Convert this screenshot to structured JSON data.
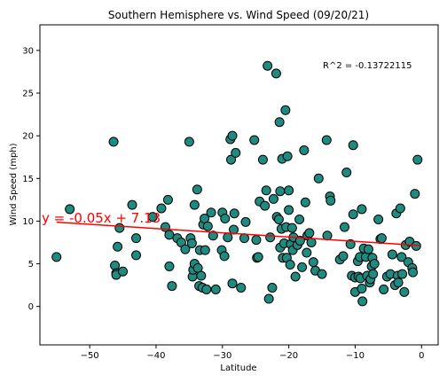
{
  "chart_data": {
    "type": "scatter",
    "title": "Southern Hemisphere vs. Wind Speed (09/20/21)",
    "xlabel": "Latitude",
    "ylabel": "Wind Speed (mph)",
    "xlim": [
      -57.5,
      2.5
    ],
    "ylim": [
      -4.5,
      33
    ],
    "xticks": [
      -50,
      -40,
      -30,
      -20,
      -10,
      0
    ],
    "yticks": [
      0,
      5,
      10,
      15,
      20,
      25,
      30
    ],
    "grid": false,
    "marker_color": "#1f8a80",
    "marker_edge": "#000000",
    "line_color": "#ff0000",
    "annotation_equation": "y = -0.05x + 7.13",
    "annotation_r2": "R^2 = -0.13722115",
    "regression": {
      "slope": -0.05,
      "intercept": 7.13,
      "x_range": [
        -55,
        -0.3
      ]
    },
    "points": [
      [
        -55,
        5.8
      ],
      [
        -53,
        11.4
      ],
      [
        -46.4,
        19.3
      ],
      [
        -46.2,
        4.8
      ],
      [
        -46,
        3.9
      ],
      [
        -46,
        3.7
      ],
      [
        -45.8,
        7
      ],
      [
        -45.5,
        9.2
      ],
      [
        -45,
        4.1
      ],
      [
        -43.6,
        11.9
      ],
      [
        -43,
        8
      ],
      [
        -43,
        6
      ],
      [
        -40.5,
        10.5
      ],
      [
        -39.2,
        11.5
      ],
      [
        -38.6,
        9.3
      ],
      [
        -38.2,
        12.5
      ],
      [
        -38,
        8.4
      ],
      [
        -38,
        4.7
      ],
      [
        -37.6,
        2.4
      ],
      [
        -36.8,
        8
      ],
      [
        -36.2,
        7.5
      ],
      [
        -35.6,
        6.7
      ],
      [
        -35,
        19.3
      ],
      [
        -34.8,
        8
      ],
      [
        -34.6,
        7.4
      ],
      [
        -34.5,
        3.5
      ],
      [
        -34.4,
        4.3
      ],
      [
        -34.2,
        11.9
      ],
      [
        -34.2,
        5
      ],
      [
        -33.8,
        13.7
      ],
      [
        -33.7,
        4.5
      ],
      [
        -33.5,
        2.4
      ],
      [
        -33.4,
        6.6
      ],
      [
        -33.2,
        3.6
      ],
      [
        -33,
        2.2
      ],
      [
        -32.9,
        9.6
      ],
      [
        -32.7,
        10.3
      ],
      [
        -32.6,
        6.6
      ],
      [
        -32.4,
        2
      ],
      [
        -32.2,
        9.4
      ],
      [
        -31.7,
        11
      ],
      [
        -31.4,
        8.3
      ],
      [
        -31,
        2
      ],
      [
        -30.1,
        6.6
      ],
      [
        -30,
        11
      ],
      [
        -29.7,
        5.9
      ],
      [
        -29.6,
        10.3
      ],
      [
        -29.2,
        8.1
      ],
      [
        -28.8,
        19.6
      ],
      [
        -28.7,
        17.2
      ],
      [
        -28.5,
        20
      ],
      [
        -28.5,
        2.7
      ],
      [
        -28.3,
        9
      ],
      [
        -28.2,
        10.9
      ],
      [
        -28,
        18
      ],
      [
        -27.2,
        2.2
      ],
      [
        -26.7,
        8
      ],
      [
        -26.5,
        9.9
      ],
      [
        -25.2,
        19.5
      ],
      [
        -24.9,
        7.8
      ],
      [
        -24.8,
        5.7
      ],
      [
        -24.6,
        5.8
      ],
      [
        -24.4,
        12.3
      ],
      [
        -23.9,
        17.2
      ],
      [
        -23.6,
        11.8
      ],
      [
        -23.4,
        13.6
      ],
      [
        -23.2,
        28.2
      ],
      [
        -23,
        0.9
      ],
      [
        -22.8,
        8.1
      ],
      [
        -22.5,
        2.2
      ],
      [
        -22.3,
        12.6
      ],
      [
        -21.9,
        27.3
      ],
      [
        -21.8,
        10.5
      ],
      [
        -21.5,
        10.2
      ],
      [
        -21.4,
        21.6
      ],
      [
        -21.3,
        6.9
      ],
      [
        -21.3,
        13.5
      ],
      [
        -21.1,
        9.1
      ],
      [
        -21,
        17.3
      ],
      [
        -20.9,
        5.7
      ],
      [
        -20.7,
        7.4
      ],
      [
        -20.5,
        23
      ],
      [
        -20.4,
        9.3
      ],
      [
        -20.3,
        5.7
      ],
      [
        -20.2,
        17.6
      ],
      [
        -20,
        11.3
      ],
      [
        -20,
        13.6
      ],
      [
        -19.8,
        4.9
      ],
      [
        -19.7,
        7.3
      ],
      [
        -19.5,
        9.2
      ],
      [
        -19.4,
        6.6
      ],
      [
        -19.3,
        8.1
      ],
      [
        -19,
        3.5
      ],
      [
        -18.7,
        7.2
      ],
      [
        -18.4,
        10.2
      ],
      [
        -18.3,
        7.7
      ],
      [
        -18,
        4.6
      ],
      [
        -17.7,
        18.3
      ],
      [
        -17.5,
        12.2
      ],
      [
        -17.3,
        6.3
      ],
      [
        -17.2,
        8.3
      ],
      [
        -16.9,
        8.6
      ],
      [
        -16.6,
        7.5
      ],
      [
        -16.3,
        5.2
      ],
      [
        -16,
        4.2
      ],
      [
        -15.5,
        15
      ],
      [
        -15,
        3.8
      ],
      [
        -14.3,
        19.5
      ],
      [
        -14.2,
        8.3
      ],
      [
        -13.8,
        12.9
      ],
      [
        -13.7,
        12.4
      ],
      [
        -12.3,
        5.5
      ],
      [
        -11.8,
        5.9
      ],
      [
        -11.6,
        9.3
      ],
      [
        -11.3,
        15.7
      ],
      [
        -10.7,
        7.3
      ],
      [
        -10.5,
        3.6
      ],
      [
        -10.3,
        18.9
      ],
      [
        -10.3,
        10.8
      ],
      [
        -10,
        3.4
      ],
      [
        -10,
        1.7
      ],
      [
        -9.6,
        5.3
      ],
      [
        -9.5,
        3.5
      ],
      [
        -9.3,
        5.8
      ],
      [
        -9.2,
        3.3
      ],
      [
        -9,
        11.4
      ],
      [
        -9,
        2.1
      ],
      [
        -8.9,
        0.6
      ],
      [
        -8.7,
        6.8
      ],
      [
        -8.4,
        5.8
      ],
      [
        -8.2,
        3.6
      ],
      [
        -8,
        6.7
      ],
      [
        -7.8,
        2.8
      ],
      [
        -7.7,
        3.2
      ],
      [
        -7.5,
        4.7
      ],
      [
        -7.4,
        5.7
      ],
      [
        -7.3,
        3.8
      ],
      [
        -7.1,
        5
      ],
      [
        -6.5,
        10.2
      ],
      [
        -6.2,
        7.9
      ],
      [
        -6,
        8
      ],
      [
        -5.7,
        2
      ],
      [
        -5.2,
        3.5
      ],
      [
        -4.7,
        3.8
      ],
      [
        -4.4,
        6.1
      ],
      [
        -4,
        2.5
      ],
      [
        -3.8,
        10.9
      ],
      [
        -3.6,
        3.6
      ],
      [
        -3.5,
        2.8
      ],
      [
        -3.2,
        11.5
      ],
      [
        -3,
        5.8
      ],
      [
        -2.9,
        3.8
      ],
      [
        -2.6,
        1.7
      ],
      [
        -2.4,
        7.2
      ],
      [
        -2,
        5.2
      ],
      [
        -1.8,
        7.6
      ],
      [
        -1.4,
        4.5
      ],
      [
        -1.3,
        4
      ],
      [
        -1,
        13.2
      ],
      [
        -0.8,
        7.1
      ],
      [
        -0.6,
        17.2
      ]
    ]
  }
}
